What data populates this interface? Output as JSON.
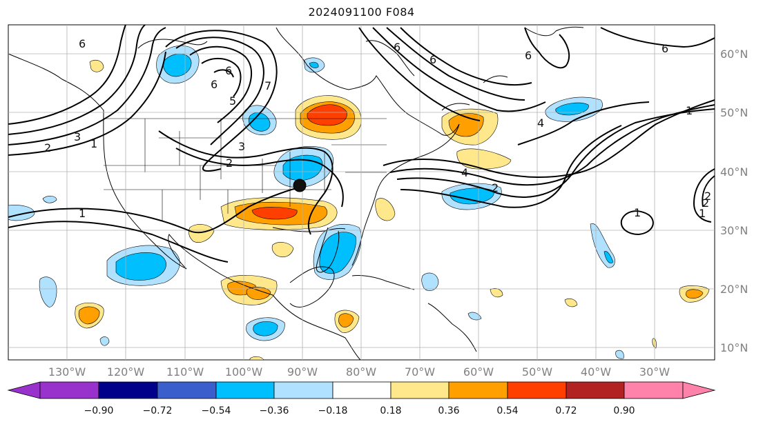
{
  "title": "2024091100 F084",
  "longitude_labels": [
    "130°W",
    "120°W",
    "110°W",
    "100°W",
    "90°W",
    "80°W",
    "70°W",
    "60°W",
    "50°W",
    "40°W",
    "30°W"
  ],
  "latitude_labels": [
    "60°N",
    "50°N",
    "40°N",
    "30°N",
    "20°N",
    "10°N"
  ],
  "colorbar": {
    "ticks": [
      "−0.90",
      "−0.72",
      "−0.54",
      "−0.36",
      "−0.18",
      "0.18",
      "0.36",
      "0.54",
      "0.72",
      "0.90"
    ],
    "colors": [
      "#9932cc",
      "#00008b",
      "#3a5fcd",
      "#00bfff",
      "#b0e2ff",
      "#ffffff",
      "#ffe88c",
      "#ffa000",
      "#ff3f00",
      "#b22222",
      "#ff82ab"
    ]
  },
  "contour_labels": [
    "6",
    "6",
    "6",
    "1",
    "2",
    "3",
    "1",
    "6",
    "7",
    "6",
    "5",
    "3",
    "2",
    "2",
    "4",
    "2",
    "4",
    "1",
    "1",
    "1",
    "2",
    "6",
    "6"
  ],
  "marker": "storm-center-marker"
}
